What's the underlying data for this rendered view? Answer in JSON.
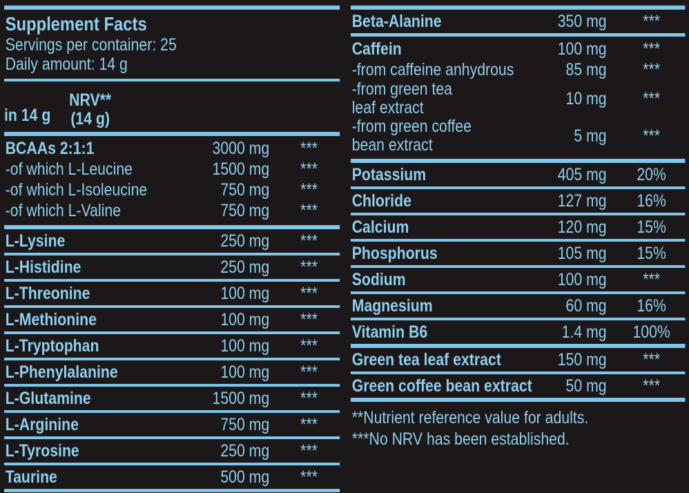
{
  "colors": {
    "background": "#1c1819",
    "text_blue": "#8ecfee",
    "line_blue": "#7ec6ea"
  },
  "left": {
    "title": "Supplement Facts",
    "servings": "Servings per container: 25",
    "daily": "Daily amount: 14 g",
    "col_amount": "in 14 g",
    "col_nrv_line1": "NRV**",
    "col_nrv_line2": "(14 g)",
    "group_rows": [
      {
        "name": "BCAAs 2:1:1",
        "amount": "3000 mg",
        "nrv": "***"
      },
      {
        "name": "-of which L-Leucine",
        "amount": "1500 mg",
        "nrv": "***"
      },
      {
        "name": "-of which L-Isoleucine",
        "amount": "750 mg",
        "nrv": "***"
      },
      {
        "name": "-of which L-Valine",
        "amount": "750 mg",
        "nrv": "***"
      }
    ],
    "rows": [
      {
        "name": "L-Lysine",
        "amount": "250 mg",
        "nrv": "***"
      },
      {
        "name": "L-Histidine",
        "amount": "250 mg",
        "nrv": "***"
      },
      {
        "name": "L-Threonine",
        "amount": "100 mg",
        "nrv": "***"
      },
      {
        "name": "L-Methionine",
        "amount": "100 mg",
        "nrv": "***"
      },
      {
        "name": "L-Tryptophan",
        "amount": "100 mg",
        "nrv": "***"
      },
      {
        "name": "L-Phenylalanine",
        "amount": "100 mg",
        "nrv": "***"
      },
      {
        "name": "L-Glutamine",
        "amount": "1500 mg",
        "nrv": "***"
      },
      {
        "name": "L-Arginine",
        "amount": "750 mg",
        "nrv": "***"
      },
      {
        "name": "L-Tyrosine",
        "amount": "250 mg",
        "nrv": "***"
      },
      {
        "name": "Taurine",
        "amount": "500 mg",
        "nrv": "***"
      }
    ]
  },
  "right": {
    "beta": {
      "name": "Beta-Alanine",
      "amount": "350 mg",
      "nrv": "***"
    },
    "caffein_group": [
      {
        "name": "Caffein",
        "amount": "100 mg",
        "nrv": "***"
      },
      {
        "name": "-from caffeine anhydrous",
        "amount": "85 mg",
        "nrv": "***"
      },
      {
        "name_line1": "-from green tea",
        "name_line2": "leaf extract",
        "amount": "10 mg",
        "nrv": "***"
      },
      {
        "name_line1": "-from green coffee",
        "name_line2": "bean extract",
        "amount": "5 mg",
        "nrv": "***"
      }
    ],
    "rows": [
      {
        "name": "Potassium",
        "amount": "405 mg",
        "nrv": "20%"
      },
      {
        "name": "Chloride",
        "amount": "127 mg",
        "nrv": "16%"
      },
      {
        "name": "Calcium",
        "amount": "120 mg",
        "nrv": "15%"
      },
      {
        "name": "Phosphorus",
        "amount": "105 mg",
        "nrv": "15%"
      },
      {
        "name": "Sodium",
        "amount": "100 mg",
        "nrv": "***"
      },
      {
        "name": "Magnesium",
        "amount": "60 mg",
        "nrv": "16%"
      },
      {
        "name": "Vitamin B6",
        "amount": "1.4 mg",
        "nrv": "100%"
      }
    ],
    "extract_rows": [
      {
        "name": "Green tea leaf extract",
        "amount": "150 mg",
        "nrv": "***"
      },
      {
        "name": "Green coffee bean extract",
        "amount": "50 mg",
        "nrv": "***"
      }
    ],
    "footnote1": "**Nutrient reference value for adults.",
    "footnote2": "***No NRV has been established."
  }
}
